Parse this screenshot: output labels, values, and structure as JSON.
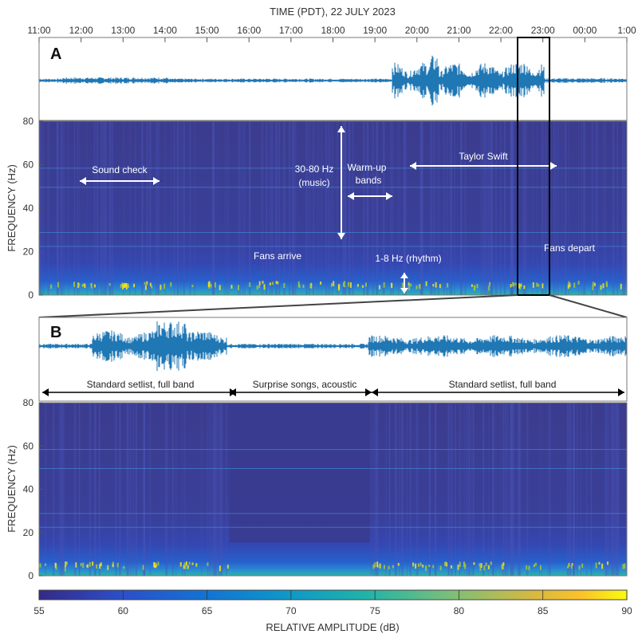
{
  "figure": {
    "top_axis_title": "TIME (PDT), 22 JULY 2023",
    "colorbar_label": "RELATIVE AMPLITUDE (dB)"
  },
  "colors": {
    "background_spec": "#3b3f8e",
    "waveform": "#1f77b4",
    "annotation_text": "#ffffff",
    "frame": "#000000"
  },
  "chart_data": [
    {
      "panel": "A",
      "type": "heatmap",
      "panel_label": "A",
      "xlabel": "TIME (PDT), 22 JULY 2023",
      "ylabel": "FREQUENCY (Hz)",
      "x_ticks": [
        "11:00",
        "12:00",
        "13:00",
        "14:00",
        "15:00",
        "16:00",
        "17:00",
        "18:00",
        "19:00",
        "20:00",
        "21:00",
        "22:00",
        "23:00",
        "00:00",
        "1:00"
      ],
      "y_ticks": [
        0,
        20,
        40,
        60,
        80
      ],
      "ylim": [
        0,
        80
      ],
      "waveform": true,
      "annotations": [
        {
          "text": "Sound check",
          "time_start": 11.9,
          "time_end": 13.9,
          "freq": 53
        },
        {
          "text": "30-80 Hz",
          "text2": "(music)",
          "time": 18.15,
          "freq_range": [
            26,
            78
          ]
        },
        {
          "text": "Warm-up",
          "text2": "bands",
          "time_start": 18.3,
          "time_end": 19.4,
          "freq": 46
        },
        {
          "text": "Taylor Swift",
          "time_start": 19.8,
          "time_end": 23.5,
          "freq": 60
        },
        {
          "text": "Fans arrive",
          "time": 17.0,
          "freq": 18
        },
        {
          "text": "1-8 Hz  (rhythm)",
          "time": 20.2,
          "freq_range": [
            1,
            8
          ]
        },
        {
          "text": "Fans depart",
          "time": 23.6,
          "freq": 21
        }
      ],
      "zoom_window": {
        "time_start": 22.5,
        "time_end": 23.3
      }
    },
    {
      "panel": "B",
      "type": "heatmap",
      "panel_label": "B",
      "ylabel": "FREQUENCY (Hz)",
      "y_ticks": [
        0,
        20,
        40,
        60,
        80
      ],
      "ylim": [
        0,
        80
      ],
      "waveform": true,
      "segments": [
        {
          "label": "Standard setlist, full band",
          "start_frac": 0.0,
          "end_frac": 0.32
        },
        {
          "label": "Surprise songs, acoustic",
          "start_frac": 0.32,
          "end_frac": 0.56
        },
        {
          "label": "Standard setlist, full band",
          "start_frac": 0.56,
          "end_frac": 1.0
        }
      ]
    }
  ],
  "colorbar": {
    "ticks": [
      55,
      60,
      65,
      70,
      75,
      80,
      85,
      90
    ],
    "range": [
      55,
      90
    ],
    "colormap": "parula",
    "label": "RELATIVE AMPLITUDE (dB)"
  }
}
